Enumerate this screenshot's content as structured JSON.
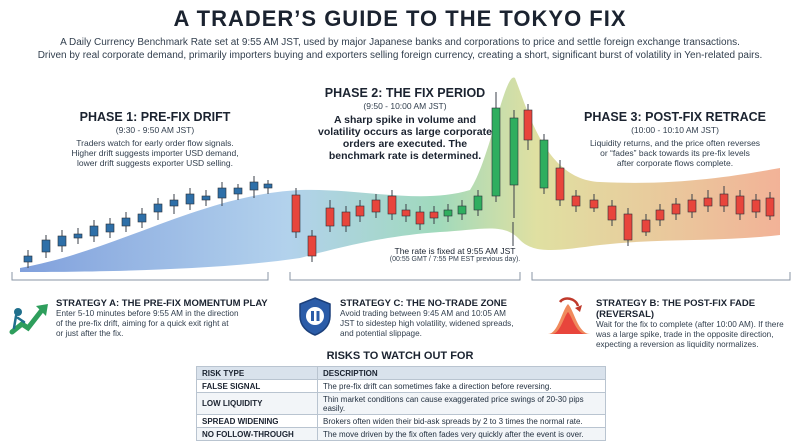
{
  "title": "A TRADER’S GUIDE TO THE TOKYO FIX",
  "subtitle_line1": "A Daily Currency Benchmark Rate set at 9:55 AM JST, used by major Japanese banks and corporations to price and settle foreign exchange transactions.",
  "subtitle_line2": "Driven by real corporate demand, primarily importers buying and exporters selling foreign currency, creating a short, significant burst of volatility in Yen-related pairs.",
  "phases": [
    {
      "title": "PHASE 1: PRE-FIX DRIFT",
      "time": "(9:30 - 9:50 AM JST)",
      "desc1": "Traders watch for early order flow signals.",
      "desc2": "Higher drift suggests importer USD demand,",
      "desc3": "lower drift suggests exporter USD selling."
    },
    {
      "title": "PHASE 2: THE FIX PERIOD",
      "time": "(9:50 - 10:00 AM JST)",
      "desc1": "A sharp spike in volume and",
      "desc2": "volatility occurs as large corporate",
      "desc3": "orders are executed. The",
      "desc4": "benchmark rate is determined."
    },
    {
      "title": "PHASE 3: POST-FIX RETRACE",
      "time": "(10:00 - 10:10 AM JST)",
      "desc1": "Liquidity returns, and the price often reverses",
      "desc2": "or “fades” back towards its pre-fix levels",
      "desc3": "after corporate flows complete."
    }
  ],
  "fix_note": {
    "line1": "The rate is fixed at 9:55 AM JST",
    "line2": "(00:55 GMT / 7:55 PM EST previous day)."
  },
  "strategies": [
    {
      "title": "STRATEGY A: THE PRE-FIX MOMENTUM PLAY",
      "l1": "Enter 5-10 minutes before 9:55 AM in the direction",
      "l2": "of the pre-fix drift, aiming for a quick exit right at",
      "l3": "or just after the fix.",
      "icon": "growth-arrow-icon"
    },
    {
      "title": "STRATEGY C: THE NO-TRADE ZONE",
      "l1": "Avoid trading between 9:45 AM and 10:05 AM",
      "l2": "JST to sidestep high volatility, widened spreads,",
      "l3": "and potential slippage.",
      "icon": "shield-pause-icon"
    },
    {
      "title": "STRATEGY B: THE POST-FIX FADE (REVERSAL)",
      "l1": "Wait for the fix to complete (after 10:00 AM). If there",
      "l2": "was a large spike, trade in the opposite direction,",
      "l3": "expecting a reversion as liquidity normalizes.",
      "icon": "peak-reversal-icon"
    }
  ],
  "risks": {
    "title": "RISKS TO WATCH OUT FOR",
    "headers": [
      "RISK TYPE",
      "DESCRIPTION"
    ],
    "rows": [
      [
        "FALSE SIGNAL",
        "The pre-fix drift can sometimes fake a direction before reversing."
      ],
      [
        "LOW LIQUIDITY",
        "Thin market conditions can cause exaggerated price swings of 20-30 pips easily."
      ],
      [
        "SPREAD WIDENING",
        "Brokers often widen their bid-ask spreads by 2 to 3 times the normal rate."
      ],
      [
        "NO FOLLOW-THROUGH",
        "The move driven by the fix often fades very quickly after the event is over."
      ]
    ]
  },
  "colors": {
    "up": "#2fae5f",
    "down": "#e8453c",
    "band_start": "#6a8fd6",
    "band_mid": "#8fd3b0",
    "band_end": "#f0a585"
  }
}
